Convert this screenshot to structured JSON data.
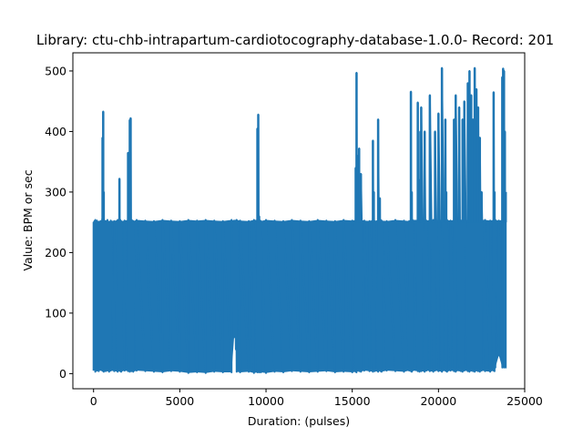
{
  "chart_data": {
    "type": "line",
    "title": "Library: ctu-chb-intrapartum-cardiotocography-database-1.0.0- Record: 201",
    "xlabel": "Duration: (pulses)",
    "ylabel": "Value: BPM or sec",
    "xlim": [
      -1200,
      25000
    ],
    "ylim": [
      -25,
      530
    ],
    "xticks": [
      0,
      5000,
      10000,
      15000,
      20000,
      25000
    ],
    "yticks": [
      0,
      100,
      200,
      300,
      400,
      500
    ],
    "grid": false,
    "legend": "none",
    "color": "#1f77b4",
    "series": [
      {
        "x": [
          0,
          50,
          100,
          200,
          300,
          400,
          500,
          520,
          560,
          590,
          620,
          700,
          800,
          900,
          1000,
          1200,
          1400,
          1500,
          1550,
          1600,
          1800,
          2000,
          2100,
          2150,
          2200,
          2250,
          2300,
          2500,
          3000,
          3500,
          4000,
          4500,
          5000,
          5500,
          6000,
          6500,
          7000,
          7500,
          8000,
          8150,
          8200,
          8250,
          8300,
          8500,
          9000,
          9300,
          9500,
          9550,
          9600,
          9650,
          9700,
          10000,
          10500,
          11000,
          11500,
          12000,
          12500,
          13000,
          13500,
          14000,
          14500,
          15000,
          15200,
          15250,
          15300,
          15400,
          15500,
          15700,
          16000,
          16200,
          16250,
          16300,
          16500,
          16600,
          16650,
          16700,
          17000,
          17500,
          18000,
          18300,
          18400,
          18450,
          18500,
          18800,
          18900,
          18950,
          19000,
          19200,
          19300,
          19500,
          19700,
          19800,
          20000,
          20200,
          20400,
          20450,
          20500,
          20700,
          20900,
          21000,
          21200,
          21300,
          21400,
          21500,
          21700,
          21800,
          21900,
          22000,
          22100,
          22200,
          22300,
          22400,
          22500,
          22700,
          23000,
          23200,
          23250,
          23300,
          23500,
          23700,
          23750,
          23800,
          23850,
          23900
        ],
        "max": [
          250,
          252,
          254,
          253,
          251,
          252,
          255,
          390,
          433,
          300,
          253,
          252,
          254,
          251,
          253,
          252,
          254,
          322,
          254,
          252,
          253,
          365,
          419,
          422,
          254,
          253,
          252,
          254,
          253,
          252,
          254,
          253,
          252,
          254,
          253,
          254,
          253,
          252,
          254,
          253,
          252,
          253,
          254,
          253,
          252,
          254,
          405,
          428,
          260,
          253,
          252,
          254,
          253,
          252,
          254,
          253,
          252,
          254,
          253,
          252,
          254,
          253,
          340,
          497,
          360,
          372,
          330,
          253,
          252,
          385,
          300,
          252,
          420,
          290,
          254,
          253,
          252,
          254,
          253,
          252,
          466,
          300,
          254,
          448,
          320,
          400,
          440,
          400,
          253,
          460,
          254,
          400,
          430,
          505,
          420,
          300,
          254,
          253,
          420,
          460,
          440,
          253,
          420,
          450,
          480,
          500,
          460,
          420,
          505,
          470,
          440,
          390,
          300,
          254,
          253,
          465,
          300,
          254,
          253,
          490,
          504,
          500,
          400,
          300
        ],
        "min": [
          5,
          10,
          3,
          5,
          4,
          6,
          5,
          5,
          4,
          3,
          5,
          4,
          5,
          3,
          5,
          4,
          3,
          5,
          4,
          3,
          5,
          4,
          3,
          5,
          4,
          5,
          3,
          5,
          4,
          3,
          2,
          4,
          3,
          1,
          2,
          1,
          3,
          2,
          2,
          60,
          80,
          40,
          3,
          2,
          3,
          1,
          2,
          3,
          2,
          3,
          2,
          1,
          3,
          2,
          4,
          3,
          2,
          3,
          4,
          2,
          3,
          2,
          3,
          2,
          5,
          4,
          3,
          5,
          4,
          3,
          5,
          4,
          3,
          5,
          4,
          3,
          5,
          4,
          3,
          5,
          4,
          3,
          5,
          4,
          3,
          5,
          4,
          3,
          5,
          4,
          3,
          5,
          4,
          3,
          5,
          4,
          3,
          5,
          4,
          3,
          5,
          4,
          3,
          5,
          4,
          3,
          5,
          4,
          3,
          5,
          4,
          3,
          5,
          4,
          3,
          5,
          4,
          10,
          30,
          10,
          15,
          10,
          12,
          10
        ]
      }
    ]
  }
}
